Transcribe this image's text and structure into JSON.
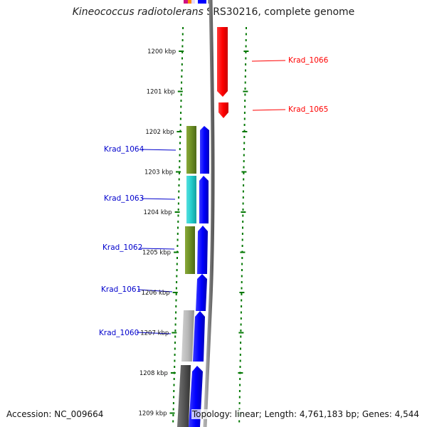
{
  "title": {
    "organism": "Kineococcus radiotolerans",
    "strain_suffix": " SRS30216, complete genome"
  },
  "scale": {
    "ticks": [
      {
        "label": "1200 kbp",
        "kbp": 1200
      },
      {
        "label": "1201 kbp",
        "kbp": 1201
      },
      {
        "label": "1202 kbp",
        "kbp": 1202
      },
      {
        "label": "1203 kbp",
        "kbp": 1203
      },
      {
        "label": "1204 kbp",
        "kbp": 1204
      },
      {
        "label": "1205 kbp",
        "kbp": 1205
      },
      {
        "label": "1206 kbp",
        "kbp": 1206
      },
      {
        "label": "1207 kbp",
        "kbp": 1207
      },
      {
        "label": "1208 kbp",
        "kbp": 1208
      },
      {
        "label": "1209 kbp",
        "kbp": 1209
      }
    ]
  },
  "genes": [
    {
      "label": "Krad_1066",
      "strand": "reverse",
      "color": "#ff0000"
    },
    {
      "label": "Krad_1065",
      "strand": "reverse",
      "color": "#ff0000"
    },
    {
      "label": "Krad_1064",
      "strand": "forward",
      "color": "#0000ff"
    },
    {
      "label": "Krad_1063",
      "strand": "forward",
      "color": "#0000ff"
    },
    {
      "label": "Krad_1062",
      "strand": "forward",
      "color": "#0000ff"
    },
    {
      "label": "Krad_1061",
      "strand": "forward",
      "color": "#0000ff"
    },
    {
      "label": "Krad_1060",
      "strand": "forward",
      "color": "#0000ff"
    }
  ],
  "colors": {
    "forward": "#0000ff",
    "reverse": "#ff0000",
    "ruler": "#007700",
    "backbone": "#888888",
    "cog_olive": "#6b8e23",
    "cog_cyan": "#22cccc",
    "cog_gray": "#b8b8b8",
    "cog_dark": "#555555"
  },
  "footer": {
    "accession": "Accession: NC_009664",
    "summary": "Topology: linear; Length: 4,761,183 bp; Genes: 4,544"
  }
}
